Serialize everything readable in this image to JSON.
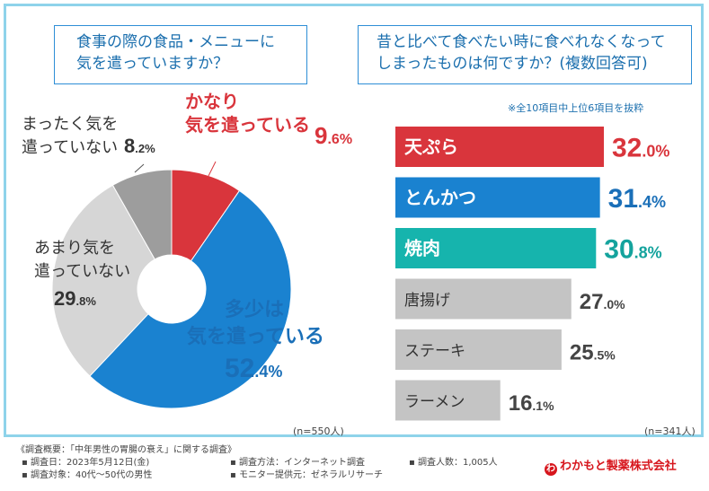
{
  "left": {
    "question_line1": "食事の際の食品・メニューに",
    "question_line2": "気を遣っていますか？",
    "n": "(n=550人)"
  },
  "right": {
    "question_line1": "昔と比べて食べたい時に食べれなくなって",
    "question_line2": "しまったものは何ですか？(複数回答可)",
    "note": "※全10項目中上位6項目を抜粋",
    "n": "(n=341人)"
  },
  "chart_data": [
    {
      "type": "pie",
      "donut": true,
      "slices": [
        {
          "label": "かなり気を遣っている",
          "label_lines": [
            "かなり",
            "気を遣っている"
          ],
          "value": 9.6,
          "color": "#d9353c",
          "label_color": "#d9353c"
        },
        {
          "label": "多少は気を遣っている",
          "label_lines": [
            "多少は",
            "気を遣っている"
          ],
          "value": 52.4,
          "color": "#1a82d0",
          "label_color": "#1a6fb8"
        },
        {
          "label": "あまり気を遣っていない",
          "label_lines": [
            "あまり気を",
            "遣っていない"
          ],
          "value": 29.8,
          "color": "#d6d6d6",
          "label_color": "#333333"
        },
        {
          "label": "まったく気を遣っていない",
          "label_lines": [
            "まったく気を",
            "遣っていない"
          ],
          "value": 8.2,
          "color": "#9d9d9d",
          "label_color": "#333333"
        }
      ]
    },
    {
      "type": "bar",
      "orientation": "horizontal",
      "categories": [
        "天ぷら",
        "とんかつ",
        "焼肉",
        "唐揚げ",
        "ステーキ",
        "ラーメン"
      ],
      "values": [
        32.0,
        31.4,
        30.8,
        27.0,
        25.5,
        16.1
      ],
      "value_labels": [
        "32.0%",
        "31.4%",
        "30.8%",
        "27.0%",
        "25.5%",
        "16.1%"
      ],
      "colors": [
        "#d9353c",
        "#1a82d0",
        "#16b4ad",
        "#c4c4c4",
        "#c4c4c4",
        "#c4c4c4"
      ],
      "value_colors": [
        "#d9353c",
        "#1a6fb8",
        "#14a39d",
        "#444444",
        "#444444",
        "#444444"
      ],
      "label_colors": [
        "#ffffff",
        "#ffffff",
        "#ffffff",
        "#333333",
        "#333333",
        "#333333"
      ]
    }
  ],
  "footer": {
    "title": "《調査概要：「中年男性の胃腸の衰え」に関する調査》",
    "date": "▪ 調査日：2023年5月12日(金)",
    "target": "▪ 調査対象：40代〜50代の男性",
    "method": "▪ 調査方法：インターネット調査",
    "provider": "▪ モニター提供元：ゼネラルリサーチ",
    "count": "▪ 調査人数：1,005人",
    "logo": "わかもと製薬株式会社"
  }
}
